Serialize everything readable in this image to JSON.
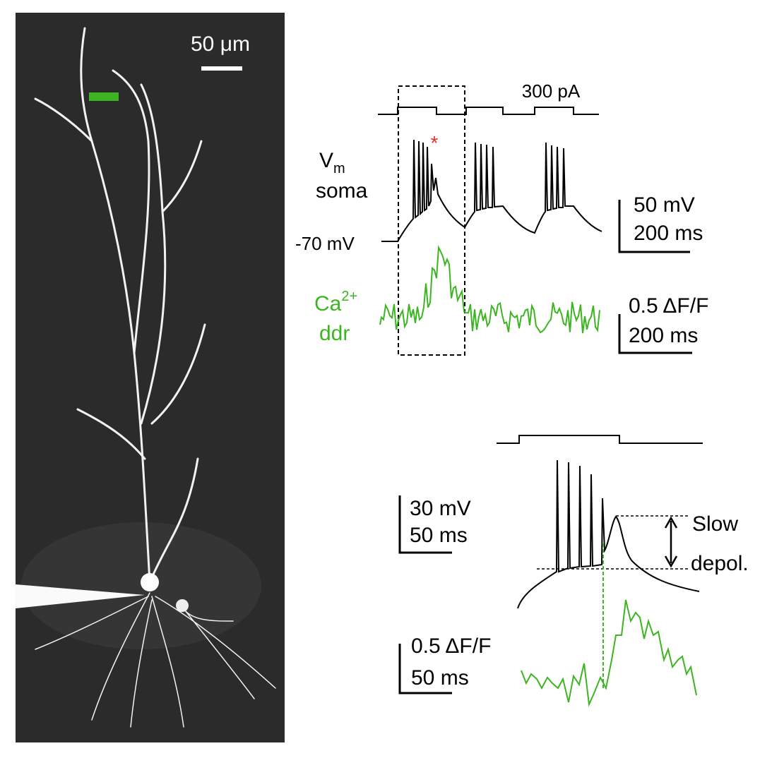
{
  "image": {
    "scale_bar": "50 μm"
  },
  "top_panel": {
    "current_label": "300 pA",
    "star": "*",
    "vm_label": {
      "main": "V",
      "sub": "m",
      "line2": "soma"
    },
    "baseline_label": "-70 mV",
    "vm_scale": {
      "v": "50 mV",
      "t": "200 ms"
    },
    "ca_label": {
      "main": "Ca",
      "sup": "2+",
      "line2": "ddr"
    },
    "ca_scale": {
      "v": "0.5 ΔF/F",
      "t": "200 ms"
    }
  },
  "bottom_panel": {
    "vm_scale": {
      "v": "30 mV",
      "t": "50 ms"
    },
    "annotation": {
      "line1": "Slow",
      "line2": "depol."
    },
    "ca_scale": {
      "v": "0.5 ΔF/F",
      "t": "50 ms"
    }
  }
}
